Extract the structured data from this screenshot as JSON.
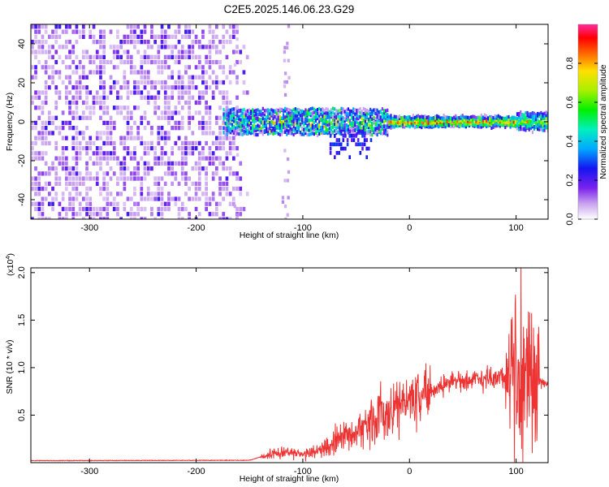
{
  "title": "C2E5.2025.146.06.23.G29",
  "chart_data": [
    {
      "type": "heatmap",
      "xlabel": "Height of straight line (km)",
      "ylabel": "Frequency (Hz)",
      "xlim": [
        -355,
        130
      ],
      "ylim": [
        -50,
        50
      ],
      "x_ticks": [
        -300,
        -200,
        -100,
        0,
        100
      ],
      "y_ticks": [
        -40,
        -20,
        0,
        20,
        40
      ],
      "colorbar": {
        "label": "Normalized spectral amplitude",
        "range": [
          0,
          1
        ],
        "ticks": [
          0.0,
          0.2,
          0.4,
          0.6,
          0.8
        ],
        "tick_labels": [
          "0.0",
          "0.2",
          "0.4",
          "0.6",
          "0.8"
        ],
        "colormap": "rainbow"
      },
      "description_regions": [
        {
          "x_range": [
            -355,
            -175
          ],
          "y_range": [
            -50,
            50
          ],
          "amplitude": 0.1
        },
        {
          "x_range": [
            -175,
            -20
          ],
          "y_range": [
            -6,
            6
          ],
          "amplitude": 0.45
        },
        {
          "x_range": [
            -20,
            130
          ],
          "y_range": [
            -2,
            2
          ],
          "amplitude": 0.9
        }
      ]
    },
    {
      "type": "line",
      "xlabel": "Height of straight line (km)",
      "ylabel": "SNR (10 * v/v)",
      "y_scale_label": "(x10",
      "y_scale_exp": "4",
      "y_scale_close": ")",
      "xlim": [
        -355,
        130
      ],
      "ylim": [
        0,
        20500
      ],
      "x_ticks": [
        -300,
        -200,
        -100,
        0,
        100
      ],
      "y_ticks": [
        5000,
        10000,
        15000,
        20000
      ],
      "y_tick_labels": [
        "0.5",
        "1.0",
        "1.5",
        "2.0"
      ],
      "color": "#ee3333",
      "series": [
        {
          "x": [
            -355,
            -250,
            -150,
            -130,
            -115,
            -100,
            -80,
            -60,
            -40,
            -20,
            0,
            20,
            40,
            60,
            80,
            100,
            110,
            115,
            120,
            130
          ],
          "values": [
            180,
            200,
            220,
            900,
            1200,
            800,
            1500,
            2800,
            4000,
            5500,
            6800,
            7600,
            8600,
            8800,
            9000,
            9000,
            9000,
            8700,
            8500,
            8300
          ]
        }
      ]
    }
  ]
}
